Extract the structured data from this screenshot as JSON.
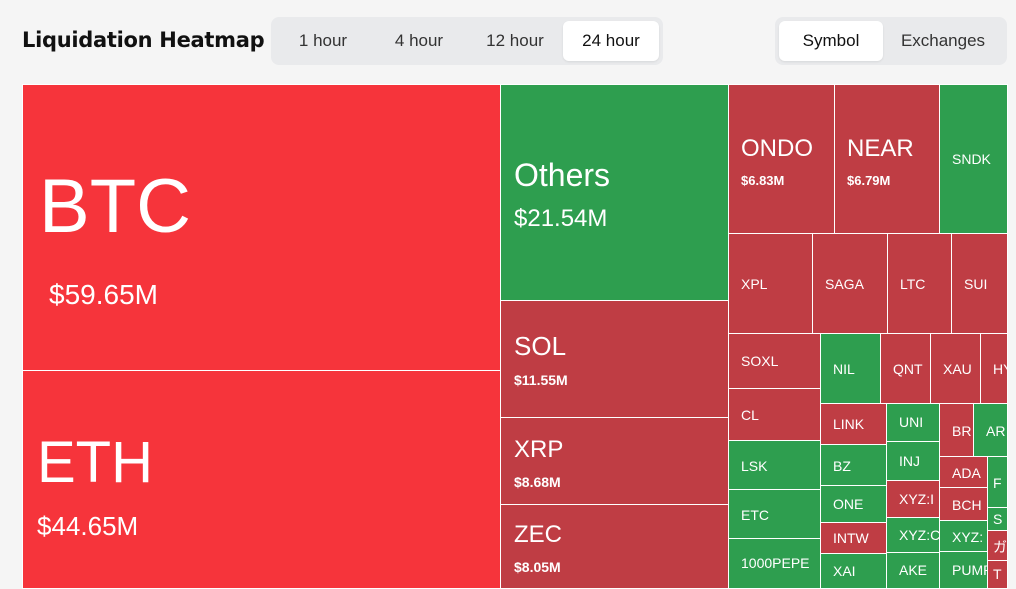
{
  "header": {
    "title": "Liquidation Heatmap",
    "time_options": [
      "1 hour",
      "4 hour",
      "12 hour",
      "24 hour"
    ],
    "time_selected": "24 hour",
    "view_options": [
      "Symbol",
      "Exchanges"
    ],
    "view_selected": "Symbol"
  },
  "colors": {
    "large_red": "#f6343b",
    "red": "#bf3d44",
    "green": "#2e9e4f"
  },
  "tiles": {
    "btc": {
      "symbol": "BTC",
      "value": "$59.65M"
    },
    "eth": {
      "symbol": "ETH",
      "value": "$44.65M"
    },
    "others": {
      "symbol": "Others",
      "value": "$21.54M"
    },
    "sol": {
      "symbol": "SOL",
      "value": "$11.55M"
    },
    "xrp": {
      "symbol": "XRP",
      "value": "$8.68M"
    },
    "zec": {
      "symbol": "ZEC",
      "value": "$8.05M"
    },
    "ondo": {
      "symbol": "ONDO",
      "value": "$6.83M"
    },
    "near": {
      "symbol": "NEAR",
      "value": "$6.79M"
    },
    "sndk": {
      "symbol": "SNDK"
    },
    "xpl": {
      "symbol": "XPL"
    },
    "saga": {
      "symbol": "SAGA"
    },
    "ltc": {
      "symbol": "LTC"
    },
    "sui": {
      "symbol": "SUI"
    },
    "soxl": {
      "symbol": "SOXL"
    },
    "nil": {
      "symbol": "NIL"
    },
    "qnt": {
      "symbol": "QNT"
    },
    "xau": {
      "symbol": "XAU"
    },
    "hy": {
      "symbol": "HY"
    },
    "cl": {
      "symbol": "CL"
    },
    "link": {
      "symbol": "LINK"
    },
    "uni": {
      "symbol": "UNI"
    },
    "br": {
      "symbol": "BR"
    },
    "ar": {
      "symbol": "AR"
    },
    "lsk": {
      "symbol": "LSK"
    },
    "bz": {
      "symbol": "BZ"
    },
    "inj": {
      "symbol": "INJ"
    },
    "ada": {
      "symbol": "ADA"
    },
    "f": {
      "symbol": "F"
    },
    "xyz1": {
      "symbol": "XYZ:I"
    },
    "etc": {
      "symbol": "ETC"
    },
    "one": {
      "symbol": "ONE"
    },
    "bch": {
      "symbol": "BCH"
    },
    "s": {
      "symbol": "S"
    },
    "xyz2": {
      "symbol": "XYZ:C"
    },
    "xyz3": {
      "symbol": "XYZ:"
    },
    "ja": {
      "symbol": "ガ"
    },
    "intw": {
      "symbol": "INTW"
    },
    "pepe": {
      "symbol": "1000PEPE"
    },
    "xai": {
      "symbol": "XAI"
    },
    "ake": {
      "symbol": "AKE"
    },
    "pump": {
      "symbol": "PUMP"
    },
    "t": {
      "symbol": "T"
    }
  }
}
